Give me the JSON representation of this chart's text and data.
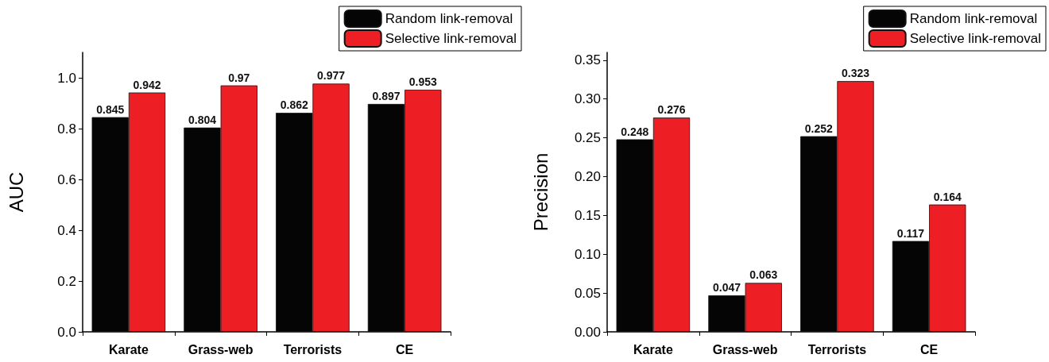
{
  "chart_data": [
    {
      "type": "bar",
      "ylabel": "AUC",
      "categories": [
        "Karate",
        "Grass-web",
        "Terrorists",
        "CE"
      ],
      "series": [
        {
          "name": "Random link-removal",
          "color": "#050505",
          "values": [
            0.845,
            0.804,
            0.862,
            0.897
          ]
        },
        {
          "name": "Selective link-removal",
          "color": "#ed1f24",
          "values": [
            0.942,
            0.97,
            0.977,
            0.953
          ]
        }
      ],
      "ylim": [
        0,
        1.1
      ],
      "yticks": [
        {
          "value": 0,
          "label": "0.0"
        },
        {
          "value": 0.2,
          "label": "0.2"
        },
        {
          "value": 0.4,
          "label": "0.4"
        },
        {
          "value": 0.6,
          "label": "0.6"
        },
        {
          "value": 0.8,
          "label": "0.8"
        },
        {
          "value": 1,
          "label": "1.0"
        }
      ],
      "data_labels": true,
      "legend": "top right",
      "grid": false
    },
    {
      "type": "bar",
      "ylabel": "Precision",
      "categories": [
        "Karate",
        "Grass-web",
        "Terrorists",
        "CE"
      ],
      "series": [
        {
          "name": "Random link-removal",
          "color": "#050505",
          "values": [
            0.248,
            0.047,
            0.252,
            0.117
          ]
        },
        {
          "name": "Selective link-removal",
          "color": "#ed1f24",
          "values": [
            0.276,
            0.063,
            0.323,
            0.164
          ]
        }
      ],
      "ylim": [
        0,
        0.36
      ],
      "yticks": [
        {
          "value": 0,
          "label": "0.00"
        },
        {
          "value": 0.05,
          "label": "0.05"
        },
        {
          "value": 0.1,
          "label": "0.10"
        },
        {
          "value": 0.15,
          "label": "0.15"
        },
        {
          "value": 0.2,
          "label": "0.20"
        },
        {
          "value": 0.25,
          "label": "0.25"
        },
        {
          "value": 0.3,
          "label": "0.30"
        },
        {
          "value": 0.35,
          "label": "0.35"
        }
      ],
      "data_labels": true,
      "legend": "top right",
      "grid": false
    }
  ]
}
